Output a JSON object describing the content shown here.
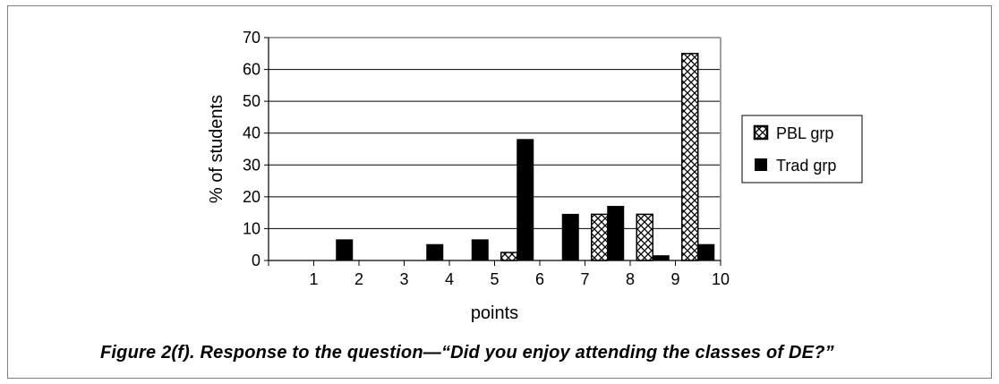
{
  "chart_data": {
    "type": "bar",
    "xlabel": "points",
    "ylabel": "% of students",
    "ylim": [
      0,
      70
    ],
    "yticks": [
      "0",
      "10",
      "20",
      "30",
      "40",
      "50",
      "60",
      "70"
    ],
    "categories": [
      "1",
      "2",
      "3",
      "4",
      "5",
      "6",
      "7",
      "8",
      "9",
      "10"
    ],
    "grid": "horizontal",
    "legend_position": "right",
    "series": [
      {
        "name": "PBL grp",
        "pattern": "checkered",
        "values": [
          0,
          0,
          0,
          0,
          0,
          2.5,
          0,
          14.5,
          14.5,
          65
        ]
      },
      {
        "name": "Trad grp",
        "color": "#000000",
        "values": [
          0,
          6.5,
          0,
          5,
          6.5,
          38,
          14.5,
          17,
          1.5,
          5
        ]
      }
    ]
  },
  "caption": "Figure 2(f). Response to the question—“Did you enjoy attending the classes of DE?”",
  "colors": {
    "frame": "#7f7f7f",
    "plot_border": "#a0a0a0",
    "grid": "#000000",
    "bar": "#000000"
  }
}
